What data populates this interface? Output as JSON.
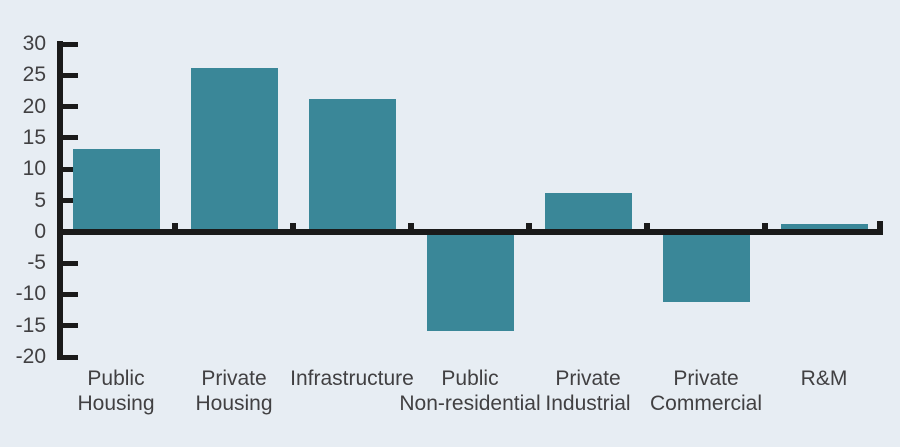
{
  "chart_data": {
    "type": "bar",
    "categories": [
      "Public Housing",
      "Private Housing",
      "Infrastructure",
      "Public Non-residential",
      "Private Industrial",
      "Private Commercial",
      "R&M"
    ],
    "category_label_lines": [
      [
        "Public",
        "Housing"
      ],
      [
        "Private",
        "Housing"
      ],
      [
        "Infrastructure"
      ],
      [
        "Public",
        "Non-residential"
      ],
      [
        "Private",
        "Industrial"
      ],
      [
        "Private",
        "Commercial"
      ],
      [
        "R&M"
      ]
    ],
    "values": [
      13.2,
      26.2,
      21.2,
      -15.9,
      6.2,
      -11.2,
      1.2
    ],
    "title": "",
    "xlabel": "",
    "ylabel": "",
    "ylim": [
      -20,
      30
    ],
    "yticks": [
      30,
      25,
      20,
      15,
      10,
      5,
      0,
      -5,
      -10,
      -15,
      -20
    ],
    "grid": false,
    "legend": null,
    "colors": {
      "bar": "#3a8798",
      "background": "#e7edf3",
      "axis": "#1a1a1a",
      "label": "#414042"
    }
  }
}
